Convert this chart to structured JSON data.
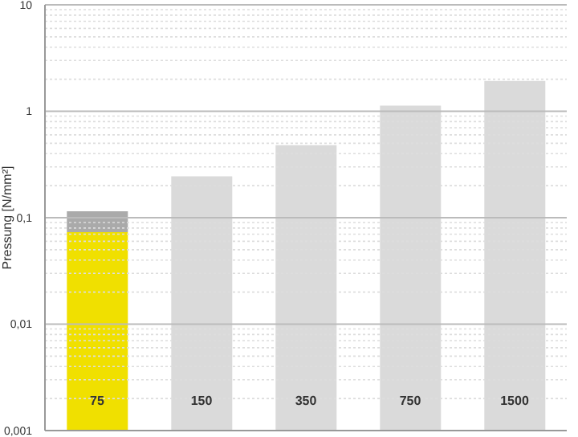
{
  "chart_data": {
    "type": "bar",
    "ylabel": "Pressung [N/mm²]",
    "categories": [
      "75",
      "150",
      "350",
      "750",
      "1500"
    ],
    "series": [
      {
        "values": [
          0.073,
          0.245,
          0.48,
          1.13,
          1.93
        ],
        "colors": [
          "#f0e000",
          "#dadada",
          "#dadada",
          "#dadada",
          "#dadada"
        ]
      },
      {
        "values": [
          0.042,
          null,
          null,
          null,
          null
        ],
        "color": "#aaaaaa"
      }
    ],
    "stacked": true,
    "log": "y",
    "ylim": [
      0.001,
      10
    ],
    "yticks": [
      {
        "value": 0.001,
        "label": "0,001"
      },
      {
        "value": 0.002,
        "label": null
      },
      {
        "value": 0.003,
        "label": null
      },
      {
        "value": 0.004,
        "label": null
      },
      {
        "value": 0.005,
        "label": null
      },
      {
        "value": 0.006,
        "label": null
      },
      {
        "value": 0.007,
        "label": null
      },
      {
        "value": 0.008,
        "label": null
      },
      {
        "value": 0.009,
        "label": null
      },
      {
        "value": 0.01,
        "label": "0,01"
      },
      {
        "value": 0.02,
        "label": null
      },
      {
        "value": 0.03,
        "label": null
      },
      {
        "value": 0.04,
        "label": null
      },
      {
        "value": 0.05,
        "label": null
      },
      {
        "value": 0.06,
        "label": null
      },
      {
        "value": 0.07,
        "label": null
      },
      {
        "value": 0.08,
        "label": null
      },
      {
        "value": 0.09,
        "label": null
      },
      {
        "value": 0.1,
        "label": "0,1"
      },
      {
        "value": 0.2,
        "label": null
      },
      {
        "value": 0.3,
        "label": null
      },
      {
        "value": 0.4,
        "label": null
      },
      {
        "value": 0.5,
        "label": null
      },
      {
        "value": 0.6,
        "label": null
      },
      {
        "value": 0.7,
        "label": null
      },
      {
        "value": 0.8,
        "label": null
      },
      {
        "value": 0.9,
        "label": null
      },
      1,
      {
        "value": 2,
        "label": null
      },
      {
        "value": 3,
        "label": null
      },
      {
        "value": 4,
        "label": null
      },
      {
        "value": 5,
        "label": null
      },
      {
        "value": 6,
        "label": null
      },
      {
        "value": 7,
        "label": null
      },
      {
        "value": 8,
        "label": null
      },
      {
        "value": 9,
        "label": null
      },
      10
    ],
    "grid": "y"
  }
}
